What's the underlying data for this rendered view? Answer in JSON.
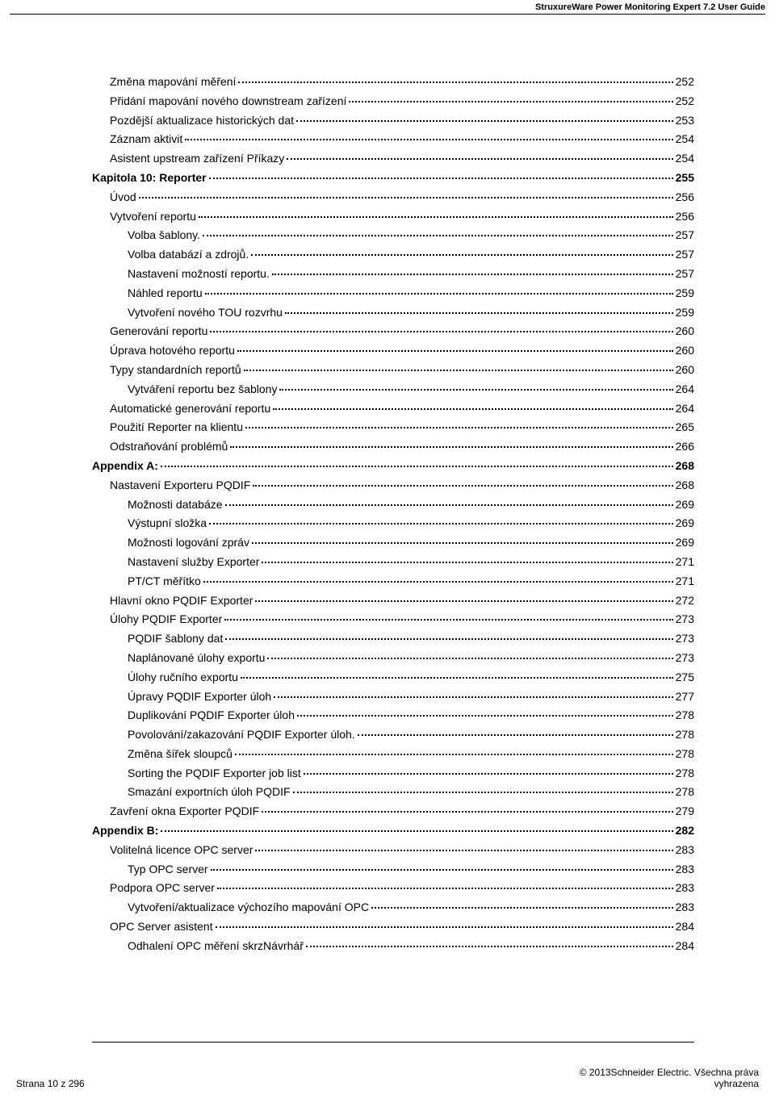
{
  "header": {
    "title": "StruxureWare Power Monitoring Expert 7.2 User Guide"
  },
  "toc": [
    {
      "indent": 1,
      "bold": false,
      "label": "Změna mapování měření",
      "page": "252"
    },
    {
      "indent": 1,
      "bold": false,
      "label": "Přidání mapování nového downstream zařízení",
      "page": "252"
    },
    {
      "indent": 1,
      "bold": false,
      "label": "Pozdější aktualizace historických dat",
      "page": "253"
    },
    {
      "indent": 1,
      "bold": false,
      "label": "Záznam aktivit",
      "page": "254"
    },
    {
      "indent": 1,
      "bold": false,
      "label": "Asistent upstream zařízení Příkazy",
      "page": "254"
    },
    {
      "indent": 0,
      "bold": true,
      "label": "Kapitola 10: Reporter",
      "page": "255"
    },
    {
      "indent": 1,
      "bold": false,
      "label": "Úvod",
      "page": "256"
    },
    {
      "indent": 1,
      "bold": false,
      "label": "Vytvoření reportu",
      "page": "256"
    },
    {
      "indent": 2,
      "bold": false,
      "label": "Volba šablony.",
      "page": "257"
    },
    {
      "indent": 2,
      "bold": false,
      "label": "Volba databází a zdrojů.",
      "page": "257"
    },
    {
      "indent": 2,
      "bold": false,
      "label": "Nastavení možností reportu.",
      "page": "257"
    },
    {
      "indent": 2,
      "bold": false,
      "label": "Náhled reportu",
      "page": "259"
    },
    {
      "indent": 2,
      "bold": false,
      "label": "Vytvoření nového TOU rozvrhu",
      "page": "259"
    },
    {
      "indent": 1,
      "bold": false,
      "label": "Generování reportu",
      "page": "260"
    },
    {
      "indent": 1,
      "bold": false,
      "label": "Úprava hotového reportu",
      "page": "260"
    },
    {
      "indent": 1,
      "bold": false,
      "label": "Typy standardních reportů",
      "page": "260"
    },
    {
      "indent": 2,
      "bold": false,
      "label": "Vytváření reportu bez šablony",
      "page": "264"
    },
    {
      "indent": 1,
      "bold": false,
      "label": "Automatické generování reportu",
      "page": "264"
    },
    {
      "indent": 1,
      "bold": false,
      "label": "Použití Reporter na klientu",
      "page": "265"
    },
    {
      "indent": 1,
      "bold": false,
      "label": "Odstraňování problémů",
      "page": "266"
    },
    {
      "indent": 0,
      "bold": true,
      "label": "Appendix A:",
      "page": "268"
    },
    {
      "indent": 1,
      "bold": false,
      "label": "Nastavení Exporteru PQDIF",
      "page": "268"
    },
    {
      "indent": 2,
      "bold": false,
      "label": "Možnosti databáze",
      "page": "269"
    },
    {
      "indent": 2,
      "bold": false,
      "label": "Výstupní složka",
      "page": "269"
    },
    {
      "indent": 2,
      "bold": false,
      "label": "Možnosti logování zpráv",
      "page": "269"
    },
    {
      "indent": 2,
      "bold": false,
      "label": "Nastavení služby Exporter",
      "page": "271"
    },
    {
      "indent": 2,
      "bold": false,
      "label": "PT/CT měřítko",
      "page": "271"
    },
    {
      "indent": 1,
      "bold": false,
      "label": "Hlavní okno PQDIF Exporter",
      "page": "272"
    },
    {
      "indent": 1,
      "bold": false,
      "label": "Úlohy PQDIF Exporter",
      "page": "273"
    },
    {
      "indent": 2,
      "bold": false,
      "label": "PQDIF šablony dat",
      "page": "273"
    },
    {
      "indent": 2,
      "bold": false,
      "label": "Naplánované úlohy exportu",
      "page": "273"
    },
    {
      "indent": 2,
      "bold": false,
      "label": "Úlohy ručního exportu",
      "page": "275"
    },
    {
      "indent": 2,
      "bold": false,
      "label": "Úpravy PQDIF Exporter úloh",
      "page": "277"
    },
    {
      "indent": 2,
      "bold": false,
      "label": "Duplikování PQDIF Exporter úloh",
      "page": "278"
    },
    {
      "indent": 2,
      "bold": false,
      "label": "Povolování/zakazování PQDIF Exporter úloh.",
      "page": "278"
    },
    {
      "indent": 2,
      "bold": false,
      "label": "Změna šířek sloupců",
      "page": "278"
    },
    {
      "indent": 2,
      "bold": false,
      "label": "Sorting the PQDIF Exporter job list",
      "page": "278"
    },
    {
      "indent": 2,
      "bold": false,
      "label": "Smazání exportních úloh PQDIF",
      "page": "278"
    },
    {
      "indent": 1,
      "bold": false,
      "label": "Zavření okna Exporter PQDIF",
      "page": "279"
    },
    {
      "indent": 0,
      "bold": true,
      "label": "Appendix B:",
      "page": "282"
    },
    {
      "indent": 1,
      "bold": false,
      "label": "Volitelná licence OPC server",
      "page": "283"
    },
    {
      "indent": 2,
      "bold": false,
      "label": "Typ OPC server",
      "page": "283"
    },
    {
      "indent": 1,
      "bold": false,
      "label": "Podpora OPC server",
      "page": "283"
    },
    {
      "indent": 2,
      "bold": false,
      "label": "Vytvoření/aktualizace výchozího mapování OPC",
      "page": "283"
    },
    {
      "indent": 1,
      "bold": false,
      "label": "OPC Server asistent",
      "page": "284"
    },
    {
      "indent": 2,
      "bold": false,
      "label": "Odhalení OPC měření skrzNávrhář",
      "page": "284"
    }
  ],
  "footer": {
    "left": "Strana 10 z 296",
    "right_line1": "© 2013Schneider Electric. Všechna práva",
    "right_line2": "vyhrazena"
  }
}
